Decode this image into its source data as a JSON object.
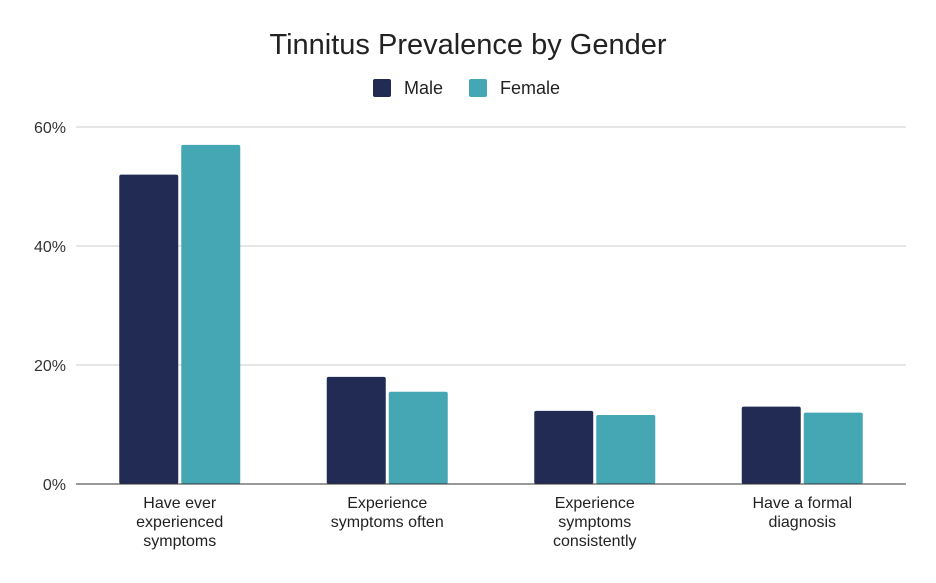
{
  "chart_data": {
    "type": "bar",
    "title": "Tinnitus Prevalence by Gender",
    "categories": [
      [
        "Have ever",
        "experienced",
        "symptoms"
      ],
      [
        "Experience",
        "symptoms often"
      ],
      [
        "Experience",
        "symptoms",
        "consistently"
      ],
      [
        "Have a formal",
        "diagnosis"
      ]
    ],
    "series": [
      {
        "name": "Male",
        "color": "#212B54",
        "values": [
          52,
          18,
          12.3,
          13
        ]
      },
      {
        "name": "Female",
        "color": "#45A6B4",
        "values": [
          57,
          15.5,
          11.6,
          12
        ]
      }
    ],
    "ylim": [
      0,
      60
    ],
    "yticks": [
      0,
      20,
      40,
      60
    ],
    "ytick_labels": [
      "0%",
      "20%",
      "40%",
      "60%"
    ],
    "grid": true,
    "legend_position": "top"
  }
}
